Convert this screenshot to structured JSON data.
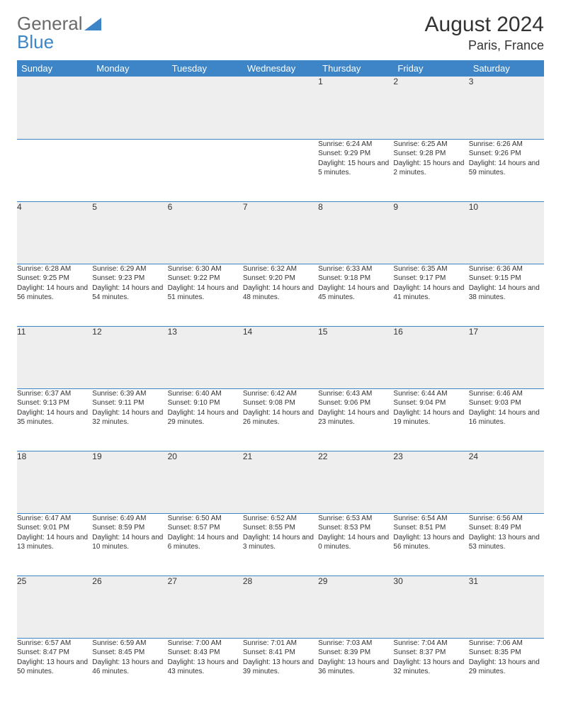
{
  "brand": {
    "part1": "General",
    "part2": "Blue"
  },
  "title": "August 2024",
  "location": "Paris, France",
  "colors": {
    "header_bg": "#3d85c6",
    "header_text": "#ffffff",
    "daynum_bg": "#eeeeee",
    "border": "#3d85c6",
    "text": "#333333",
    "logo_gray": "#6a6a6a"
  },
  "weekdays": [
    "Sunday",
    "Monday",
    "Tuesday",
    "Wednesday",
    "Thursday",
    "Friday",
    "Saturday"
  ],
  "weeks": [
    [
      null,
      null,
      null,
      null,
      {
        "d": "1",
        "sr": "6:24 AM",
        "ss": "9:29 PM",
        "dl": "15 hours and 5 minutes."
      },
      {
        "d": "2",
        "sr": "6:25 AM",
        "ss": "9:28 PM",
        "dl": "15 hours and 2 minutes."
      },
      {
        "d": "3",
        "sr": "6:26 AM",
        "ss": "9:26 PM",
        "dl": "14 hours and 59 minutes."
      }
    ],
    [
      {
        "d": "4",
        "sr": "6:28 AM",
        "ss": "9:25 PM",
        "dl": "14 hours and 56 minutes."
      },
      {
        "d": "5",
        "sr": "6:29 AM",
        "ss": "9:23 PM",
        "dl": "14 hours and 54 minutes."
      },
      {
        "d": "6",
        "sr": "6:30 AM",
        "ss": "9:22 PM",
        "dl": "14 hours and 51 minutes."
      },
      {
        "d": "7",
        "sr": "6:32 AM",
        "ss": "9:20 PM",
        "dl": "14 hours and 48 minutes."
      },
      {
        "d": "8",
        "sr": "6:33 AM",
        "ss": "9:18 PM",
        "dl": "14 hours and 45 minutes."
      },
      {
        "d": "9",
        "sr": "6:35 AM",
        "ss": "9:17 PM",
        "dl": "14 hours and 41 minutes."
      },
      {
        "d": "10",
        "sr": "6:36 AM",
        "ss": "9:15 PM",
        "dl": "14 hours and 38 minutes."
      }
    ],
    [
      {
        "d": "11",
        "sr": "6:37 AM",
        "ss": "9:13 PM",
        "dl": "14 hours and 35 minutes."
      },
      {
        "d": "12",
        "sr": "6:39 AM",
        "ss": "9:11 PM",
        "dl": "14 hours and 32 minutes."
      },
      {
        "d": "13",
        "sr": "6:40 AM",
        "ss": "9:10 PM",
        "dl": "14 hours and 29 minutes."
      },
      {
        "d": "14",
        "sr": "6:42 AM",
        "ss": "9:08 PM",
        "dl": "14 hours and 26 minutes."
      },
      {
        "d": "15",
        "sr": "6:43 AM",
        "ss": "9:06 PM",
        "dl": "14 hours and 23 minutes."
      },
      {
        "d": "16",
        "sr": "6:44 AM",
        "ss": "9:04 PM",
        "dl": "14 hours and 19 minutes."
      },
      {
        "d": "17",
        "sr": "6:46 AM",
        "ss": "9:03 PM",
        "dl": "14 hours and 16 minutes."
      }
    ],
    [
      {
        "d": "18",
        "sr": "6:47 AM",
        "ss": "9:01 PM",
        "dl": "14 hours and 13 minutes."
      },
      {
        "d": "19",
        "sr": "6:49 AM",
        "ss": "8:59 PM",
        "dl": "14 hours and 10 minutes."
      },
      {
        "d": "20",
        "sr": "6:50 AM",
        "ss": "8:57 PM",
        "dl": "14 hours and 6 minutes."
      },
      {
        "d": "21",
        "sr": "6:52 AM",
        "ss": "8:55 PM",
        "dl": "14 hours and 3 minutes."
      },
      {
        "d": "22",
        "sr": "6:53 AM",
        "ss": "8:53 PM",
        "dl": "14 hours and 0 minutes."
      },
      {
        "d": "23",
        "sr": "6:54 AM",
        "ss": "8:51 PM",
        "dl": "13 hours and 56 minutes."
      },
      {
        "d": "24",
        "sr": "6:56 AM",
        "ss": "8:49 PM",
        "dl": "13 hours and 53 minutes."
      }
    ],
    [
      {
        "d": "25",
        "sr": "6:57 AM",
        "ss": "8:47 PM",
        "dl": "13 hours and 50 minutes."
      },
      {
        "d": "26",
        "sr": "6:59 AM",
        "ss": "8:45 PM",
        "dl": "13 hours and 46 minutes."
      },
      {
        "d": "27",
        "sr": "7:00 AM",
        "ss": "8:43 PM",
        "dl": "13 hours and 43 minutes."
      },
      {
        "d": "28",
        "sr": "7:01 AM",
        "ss": "8:41 PM",
        "dl": "13 hours and 39 minutes."
      },
      {
        "d": "29",
        "sr": "7:03 AM",
        "ss": "8:39 PM",
        "dl": "13 hours and 36 minutes."
      },
      {
        "d": "30",
        "sr": "7:04 AM",
        "ss": "8:37 PM",
        "dl": "13 hours and 32 minutes."
      },
      {
        "d": "31",
        "sr": "7:06 AM",
        "ss": "8:35 PM",
        "dl": "13 hours and 29 minutes."
      }
    ]
  ],
  "labels": {
    "sunrise": "Sunrise: ",
    "sunset": "Sunset: ",
    "daylight": "Daylight: "
  }
}
